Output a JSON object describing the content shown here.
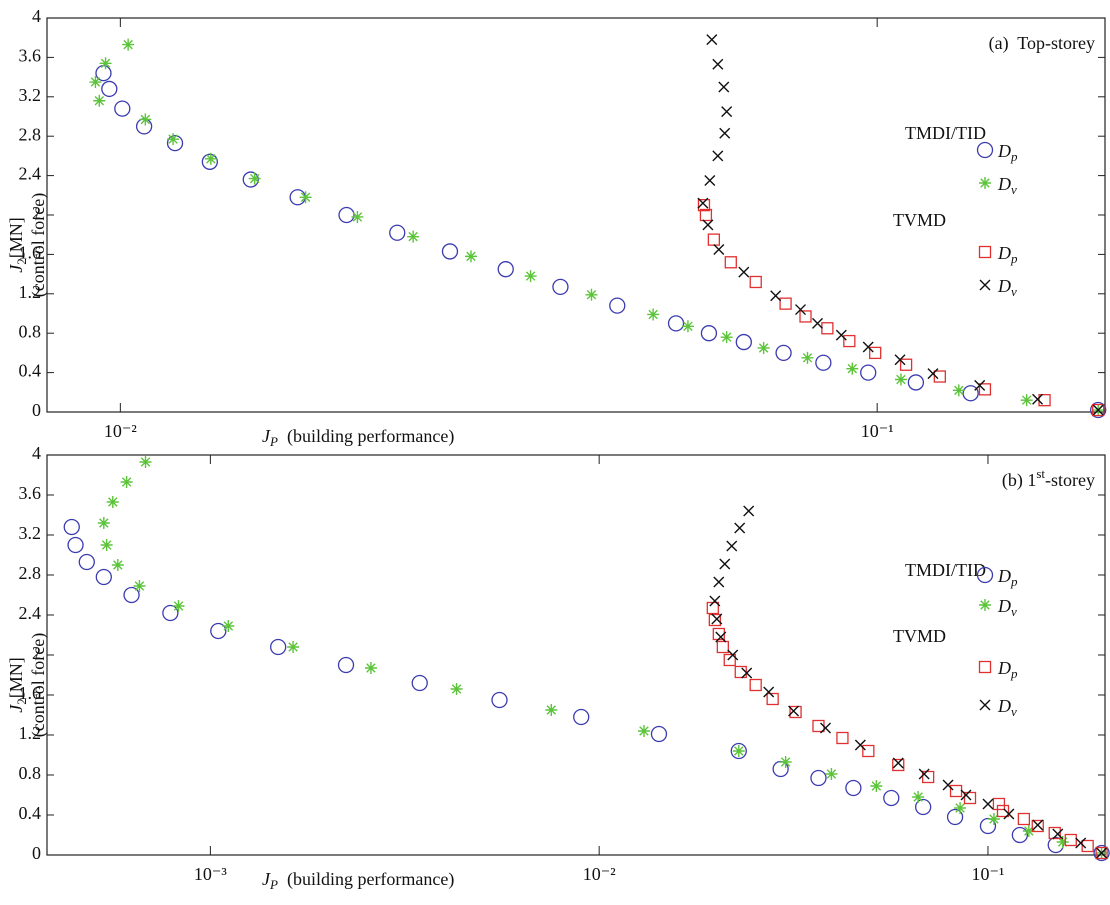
{
  "chart_data": [
    {
      "type": "scatter",
      "xscale": "log",
      "annotation": {
        "text": "(a)  Top-storey"
      },
      "xlabel": {
        "symbol": "J",
        "subscript": "P",
        "text": "  (building performance)"
      },
      "ylabel": {
        "symbol": "J",
        "subscript": "2",
        "unit": "[MN]",
        "note": "(control force)"
      },
      "xlim": [
        0.008,
        0.2
      ],
      "ylim": [
        0,
        4
      ],
      "xticks": [
        {
          "value": 0.01,
          "label": "10⁻²"
        },
        {
          "value": 0.1,
          "label": "10⁻¹"
        }
      ],
      "yticks": [
        0,
        0.4,
        0.8,
        1.2,
        1.6,
        2,
        2.4,
        2.8,
        3.2,
        3.6,
        4
      ],
      "series": [
        {
          "group": "TMDI/TID",
          "name": "D",
          "name_sub": "p",
          "color": "#3b3bb0",
          "marker": "circle",
          "x": [
            0.0095,
            0.00967,
            0.01006,
            0.01075,
            0.01181,
            0.01313,
            0.01487,
            0.01715,
            0.0199,
            0.02322,
            0.02726,
            0.0323,
            0.03815,
            0.04535,
            0.05423,
            0.05994,
            0.06665,
            0.07522,
            0.0849,
            0.09731,
            0.1125,
            0.1329,
            0.1959
          ],
          "values": [
            3.44,
            3.28,
            3.08,
            2.9,
            2.73,
            2.54,
            2.36,
            2.18,
            2.0,
            1.82,
            1.63,
            1.45,
            1.27,
            1.08,
            0.9,
            0.8,
            0.71,
            0.6,
            0.5,
            0.4,
            0.3,
            0.19,
            0.02
          ]
        },
        {
          "group": "TMDI/TID",
          "name": "D",
          "name_sub": "v",
          "color": "#5cc43a",
          "marker": "asterisk",
          "x": [
            0.01024,
            0.00956,
            0.00927,
            0.00938,
            0.01079,
            0.01174,
            0.01317,
            0.01505,
            0.01757,
            0.02057,
            0.02437,
            0.02906,
            0.03484,
            0.04193,
            0.05058,
            0.05623,
            0.06326,
            0.07079,
            0.0809,
            0.09271,
            0.1075,
            0.1282,
            0.1576,
            0.1959
          ],
          "values": [
            3.73,
            3.54,
            3.35,
            3.16,
            2.97,
            2.77,
            2.57,
            2.37,
            2.18,
            1.98,
            1.78,
            1.58,
            1.38,
            1.19,
            0.99,
            0.87,
            0.76,
            0.65,
            0.55,
            0.44,
            0.33,
            0.22,
            0.12,
            0.02
          ]
        },
        {
          "group": "TVMD",
          "name": "D",
          "name_sub": "p",
          "color": "#e03030",
          "marker": "square",
          "x": [
            0.05904,
            0.05939,
            0.06084,
            0.06406,
            0.06911,
            0.07568,
            0.08041,
            0.08594,
            0.09188,
            0.0994,
            0.1092,
            0.121,
            0.1388,
            0.1664,
            0.1959
          ],
          "values": [
            2.1,
            2.0,
            1.75,
            1.52,
            1.32,
            1.1,
            0.97,
            0.85,
            0.72,
            0.6,
            0.48,
            0.36,
            0.23,
            0.12,
            0.02
          ]
        },
        {
          "group": "TVMD",
          "name": "D",
          "name_sub": "v",
          "color": "#111111",
          "marker": "cross",
          "x": [
            0.06047,
            0.06158,
            0.06271,
            0.06326,
            0.06289,
            0.06158,
            0.0601,
            0.05885,
            0.05975,
            0.06177,
            0.06665,
            0.07343,
            0.0792,
            0.0834,
            0.08967,
            0.09731,
            0.1072,
            0.1185,
            0.1366,
            0.1629,
            0.1959
          ],
          "values": [
            3.78,
            3.53,
            3.3,
            3.05,
            2.83,
            2.6,
            2.35,
            2.12,
            1.9,
            1.65,
            1.42,
            1.18,
            1.04,
            0.9,
            0.78,
            0.66,
            0.53,
            0.39,
            0.27,
            0.13,
            0.02
          ]
        }
      ]
    },
    {
      "type": "scatter",
      "xscale": "log",
      "annotation": {
        "text": "(b) 1",
        "sup": "st",
        "rest": "-storey"
      },
      "xlabel": {
        "symbol": "J",
        "subscript": "P",
        "text": "  (building performance)"
      },
      "ylabel": {
        "symbol": "J",
        "subscript": "2",
        "unit": "[MN]",
        "note": "(control force)"
      },
      "xlim": [
        0.00038,
        0.2
      ],
      "ylim": [
        0,
        4
      ],
      "xticks": [
        {
          "value": 0.001,
          "label": "10⁻³"
        },
        {
          "value": 0.01,
          "label": "10⁻²"
        },
        {
          "value": 0.1,
          "label": "10⁻¹"
        }
      ],
      "yticks": [
        0,
        0.4,
        0.8,
        1.2,
        1.6,
        2,
        2.4,
        2.8,
        3.2,
        3.6,
        4
      ],
      "series": [
        {
          "group": "TMDI/TID",
          "name": "D",
          "name_sub": "p",
          "color": "#3b3bb0",
          "marker": "circle",
          "x": [
            0.00044,
            0.00045,
            0.000481,
            0.000532,
            0.000627,
            0.000789,
            0.001048,
            0.001494,
            0.002233,
            0.003455,
            0.005542,
            0.008991,
            0.01425,
            0.02286,
            0.02929,
            0.03665,
            0.04507,
            0.05641,
            0.06813,
            0.0823,
            0.1,
            0.1208,
            0.1494,
            0.196
          ],
          "values": [
            3.28,
            3.1,
            2.93,
            2.78,
            2.6,
            2.42,
            2.24,
            2.08,
            1.9,
            1.72,
            1.55,
            1.38,
            1.21,
            1.04,
            0.86,
            0.77,
            0.67,
            0.57,
            0.48,
            0.38,
            0.29,
            0.2,
            0.1,
            0.02
          ]
        },
        {
          "group": "TMDI/TID",
          "name": "D",
          "name_sub": "v",
          "color": "#5cc43a",
          "marker": "asterisk",
          "x": [
            0.000681,
            0.000609,
            0.000561,
            0.000532,
            0.000541,
            0.000578,
            0.000657,
            0.000828,
            0.001112,
            0.001632,
            0.002588,
            0.004297,
            0.007531,
            0.01304,
            0.02286,
            0.03017,
            0.03957,
            0.05163,
            0.06613,
            0.08478,
            0.1036,
            0.1274,
            0.1557,
            0.196
          ],
          "values": [
            3.93,
            3.73,
            3.53,
            3.32,
            3.1,
            2.9,
            2.69,
            2.49,
            2.29,
            2.08,
            1.87,
            1.66,
            1.45,
            1.24,
            1.04,
            0.93,
            0.81,
            0.69,
            0.58,
            0.47,
            0.36,
            0.24,
            0.13,
            0.02
          ]
        },
        {
          "group": "TVMD",
          "name": "D",
          "name_sub": "p",
          "color": "#e03030",
          "marker": "square",
          "x": [
            0.0196,
            0.01984,
            0.02031,
            0.0208,
            0.02167,
            0.02313,
            0.02527,
            0.02794,
            0.032,
            0.03665,
            0.04224,
            0.04924,
            0.05878,
            0.07017,
            0.08278,
            0.08991,
            0.1067,
            0.1093,
            0.1237,
            0.1343,
            0.1485,
            0.1633,
            0.1805,
            0.196
          ],
          "values": [
            2.47,
            2.35,
            2.21,
            2.08,
            1.95,
            1.83,
            1.7,
            1.56,
            1.43,
            1.29,
            1.17,
            1.04,
            0.9,
            0.78,
            0.64,
            0.57,
            0.51,
            0.44,
            0.36,
            0.29,
            0.22,
            0.15,
            0.09,
            0.02
          ]
        },
        {
          "group": "TVMD",
          "name": "D",
          "name_sub": "v",
          "color": "#111111",
          "marker": "cross",
          "x": [
            0.02424,
            0.02298,
            0.02193,
            0.02104,
            0.02031,
            0.01984,
            0.02007,
            0.02055,
            0.02206,
            0.02396,
            0.02729,
            0.03162,
            0.03821,
            0.04697,
            0.05878,
            0.06854,
            0.07895,
            0.08782,
            0.1,
            0.1132,
            0.1343,
            0.1512,
            0.1732,
            0.196
          ],
          "values": [
            3.44,
            3.27,
            3.09,
            2.91,
            2.73,
            2.54,
            2.36,
            2.18,
            2.0,
            1.82,
            1.63,
            1.44,
            1.27,
            1.1,
            0.92,
            0.81,
            0.7,
            0.6,
            0.51,
            0.41,
            0.3,
            0.21,
            0.12,
            0.02
          ]
        }
      ]
    }
  ]
}
